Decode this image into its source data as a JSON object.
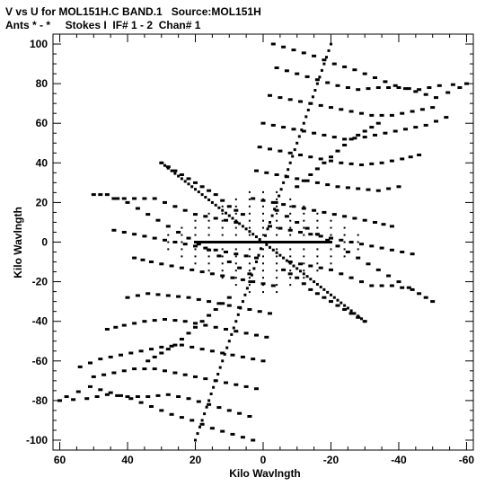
{
  "header": {
    "line1": "V vs U for MOL151H.C BAND.1   Source:MOL151H",
    "line2": "Ants * - *     Stokes I  IF# 1 - 2  Chan# 1"
  },
  "colors": {
    "foreground": "#000000",
    "background": "#ffffff"
  },
  "chart_data": {
    "type": "scatter",
    "title": "V vs U for MOL151H.C BAND.1   Source:MOL151H",
    "subtitle": "Ants * - *     Stokes I  IF# 1 - 2  Chan# 1",
    "xlabel": "Kilo Wavlngth",
    "ylabel": "Kilo Wavlngth",
    "xlim": [
      62,
      -62
    ],
    "ylim": [
      -105,
      105
    ],
    "x_reversed": true,
    "grid": false,
    "xticks": [
      60,
      40,
      20,
      0,
      -20,
      -40,
      -60
    ],
    "xtick_labels": [
      "60",
      "40",
      "20",
      "0",
      "-20",
      "-40",
      "-60"
    ],
    "yticks": [
      100,
      80,
      60,
      40,
      20,
      0,
      -20,
      -40,
      -60,
      -80,
      -100
    ],
    "ytick_labels": [
      "100",
      "80",
      "60",
      "40",
      "20",
      "0",
      "-20",
      "-40",
      "-60",
      "-80",
      "-100"
    ],
    "series": [
      {
        "tracks": [
          {
            "x": [
              [
                -3,
                100
              ],
              [
                -9,
                97
              ],
              [
                -15,
                94
              ],
              [
                -21,
                90
              ],
              [
                -27,
                87
              ],
              [
                -33,
                83
              ],
              [
                -39,
                79
              ],
              [
                -45,
                76
              ],
              [
                -51,
                73
              ],
              [
                -58,
                78
              ]
            ]
          },
          {
            "x": [
              [
                -4,
                88
              ],
              [
                -10,
                85
              ],
              [
                -16,
                82
              ],
              [
                -22,
                79
              ],
              [
                -28,
                77
              ],
              [
                -34,
                78
              ],
              [
                -40,
                78
              ],
              [
                -46,
                77
              ],
              [
                -52,
                79
              ],
              [
                -60,
                80
              ]
            ]
          },
          {
            "x": [
              [
                -2,
                74
              ],
              [
                -8,
                72
              ],
              [
                -14,
                70
              ],
              [
                -20,
                68
              ],
              [
                -26,
                66
              ],
              [
                -32,
                64
              ],
              [
                -38,
                64
              ],
              [
                -44,
                66
              ],
              [
                -50,
                68
              ]
            ]
          },
          {
            "x": [
              [
                0,
                60
              ],
              [
                -6,
                58
              ],
              [
                -12,
                56
              ],
              [
                -18,
                54
              ],
              [
                -24,
                52
              ],
              [
                -30,
                53
              ],
              [
                -36,
                55
              ],
              [
                -42,
                57
              ],
              [
                -48,
                59
              ],
              [
                -54,
                63
              ]
            ]
          },
          {
            "x": [
              [
                1,
                48
              ],
              [
                -5,
                46
              ],
              [
                -11,
                44
              ],
              [
                -17,
                42
              ],
              [
                -23,
                40
              ],
              [
                -29,
                39
              ],
              [
                -35,
                40
              ],
              [
                -41,
                42
              ],
              [
                -46,
                44
              ]
            ]
          },
          {
            "x": [
              [
                2,
                36
              ],
              [
                -4,
                34
              ],
              [
                -10,
                32
              ],
              [
                -16,
                30
              ],
              [
                -22,
                28
              ],
              [
                -28,
                27
              ],
              [
                -34,
                26
              ],
              [
                -40,
                28
              ]
            ]
          },
          {
            "x": [
              [
                3,
                22
              ],
              [
                -3,
                20
              ],
              [
                -9,
                18
              ],
              [
                -15,
                16
              ],
              [
                -21,
                14
              ],
              [
                -27,
                12
              ],
              [
                -33,
                10
              ],
              [
                -38,
                8
              ]
            ]
          },
          {
            "x": [
              [
                -2,
                8
              ],
              [
                -8,
                6
              ],
              [
                -14,
                4
              ],
              [
                -20,
                2
              ],
              [
                -26,
                0
              ],
              [
                -32,
                -2
              ],
              [
                -38,
                -4
              ],
              [
                -44,
                -6
              ]
            ]
          },
          {
            "x": [
              [
                3,
                -100
              ],
              [
                9,
                -97
              ],
              [
                15,
                -94
              ],
              [
                21,
                -90
              ],
              [
                27,
                -87
              ],
              [
                33,
                -83
              ],
              [
                39,
                -79
              ],
              [
                45,
                -76
              ],
              [
                51,
                -73
              ],
              [
                58,
                -78
              ]
            ]
          },
          {
            "x": [
              [
                4,
                -88
              ],
              [
                10,
                -85
              ],
              [
                16,
                -82
              ],
              [
                22,
                -79
              ],
              [
                28,
                -77
              ],
              [
                34,
                -78
              ],
              [
                40,
                -78
              ],
              [
                46,
                -77
              ],
              [
                52,
                -79
              ],
              [
                60,
                -80
              ]
            ]
          },
          {
            "x": [
              [
                2,
                -74
              ],
              [
                8,
                -72
              ],
              [
                14,
                -70
              ],
              [
                20,
                -68
              ],
              [
                26,
                -66
              ],
              [
                32,
                -64
              ],
              [
                38,
                -64
              ],
              [
                44,
                -66
              ],
              [
                50,
                -68
              ]
            ]
          },
          {
            "x": [
              [
                0,
                -60
              ],
              [
                6,
                -58
              ],
              [
                12,
                -56
              ],
              [
                18,
                -54
              ],
              [
                24,
                -52
              ],
              [
                30,
                -53
              ],
              [
                36,
                -55
              ],
              [
                42,
                -57
              ],
              [
                48,
                -59
              ],
              [
                54,
                -63
              ]
            ]
          },
          {
            "x": [
              [
                -1,
                -48
              ],
              [
                5,
                -46
              ],
              [
                11,
                -44
              ],
              [
                17,
                -42
              ],
              [
                23,
                -40
              ],
              [
                29,
                -39
              ],
              [
                35,
                -40
              ],
              [
                41,
                -42
              ],
              [
                46,
                -44
              ]
            ]
          },
          {
            "x": [
              [
                -2,
                -36
              ],
              [
                4,
                -34
              ],
              [
                10,
                -32
              ],
              [
                16,
                -30
              ],
              [
                22,
                -28
              ],
              [
                28,
                -27
              ],
              [
                34,
                -26
              ],
              [
                40,
                -28
              ]
            ]
          },
          {
            "x": [
              [
                -3,
                -22
              ],
              [
                3,
                -20
              ],
              [
                9,
                -18
              ],
              [
                15,
                -16
              ],
              [
                21,
                -14
              ],
              [
                27,
                -12
              ],
              [
                33,
                -10
              ],
              [
                38,
                -8
              ]
            ]
          },
          {
            "x": [
              [
                2,
                -8
              ],
              [
                8,
                -6
              ],
              [
                14,
                -4
              ],
              [
                20,
                -2
              ],
              [
                26,
                0
              ],
              [
                32,
                2
              ],
              [
                38,
                4
              ],
              [
                44,
                6
              ]
            ]
          },
          {
            "x": [
              [
                -4,
                16
              ],
              [
                -10,
                10
              ],
              [
                -16,
                4
              ],
              [
                -22,
                -2
              ],
              [
                -28,
                -8
              ],
              [
                -34,
                -14
              ],
              [
                -40,
                -20
              ],
              [
                -46,
                -26
              ],
              [
                -50,
                -30
              ]
            ]
          },
          {
            "x": [
              [
                4,
                -16
              ],
              [
                10,
                -10
              ],
              [
                16,
                -4
              ],
              [
                22,
                2
              ],
              [
                28,
                8
              ],
              [
                34,
                14
              ],
              [
                40,
                20
              ],
              [
                46,
                24
              ],
              [
                50,
                24
              ]
            ]
          },
          {
            "x": [
              [
                8,
                10
              ],
              [
                14,
                12
              ],
              [
                20,
                14
              ],
              [
                26,
                18
              ],
              [
                32,
                22
              ],
              [
                38,
                22
              ],
              [
                44,
                22
              ]
            ]
          },
          {
            "x": [
              [
                -8,
                -10
              ],
              [
                -14,
                -12
              ],
              [
                -20,
                -14
              ],
              [
                -26,
                -18
              ],
              [
                -32,
                -22
              ],
              [
                -38,
                -22
              ],
              [
                -44,
                -24
              ]
            ]
          },
          {
            "x": [
              [
                -6,
                -14
              ],
              [
                -10,
                -18
              ],
              [
                -14,
                -24
              ],
              [
                -18,
                -28
              ],
              [
                -22,
                -32
              ],
              [
                -26,
                -36
              ],
              [
                -30,
                -40
              ]
            ]
          },
          {
            "x": [
              [
                6,
                14
              ],
              [
                10,
                18
              ],
              [
                14,
                24
              ],
              [
                18,
                28
              ],
              [
                22,
                32
              ],
              [
                26,
                36
              ],
              [
                30,
                40
              ]
            ]
          },
          {
            "x": [
              [
                10,
                -28
              ],
              [
                14,
                -34
              ],
              [
                18,
                -40
              ],
              [
                22,
                -46
              ],
              [
                26,
                -52
              ],
              [
                30,
                -56
              ],
              [
                34,
                -60
              ]
            ]
          },
          {
            "x": [
              [
                -10,
                28
              ],
              [
                -14,
                34
              ],
              [
                -18,
                40
              ],
              [
                -22,
                46
              ],
              [
                -26,
                52
              ],
              [
                -30,
                56
              ],
              [
                -34,
                60
              ]
            ]
          }
        ]
      }
    ],
    "strokes": [
      {
        "name": "diagonal-a",
        "x": [
          [
            20,
            -100
          ],
          [
            -20,
            100
          ]
        ]
      },
      {
        "name": "diagonal-b",
        "x": [
          [
            -30,
            -40
          ],
          [
            30,
            40
          ]
        ]
      },
      {
        "name": "horizontal",
        "x": [
          [
            -20,
            0
          ],
          [
            20,
            0
          ]
        ]
      }
    ]
  }
}
